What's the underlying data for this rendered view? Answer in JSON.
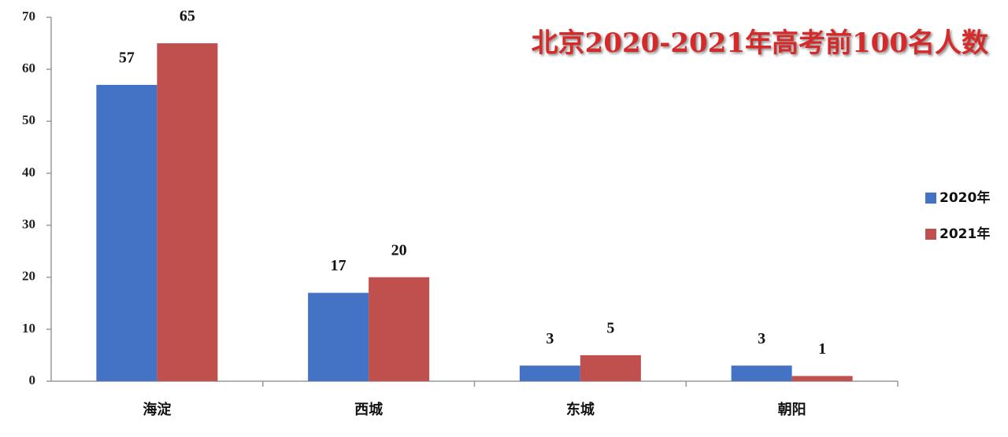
{
  "chart_data": {
    "type": "bar",
    "title": "北京2020-2021年高考前100名人数",
    "categories": [
      "海淀",
      "西城",
      "东城",
      "朝阳"
    ],
    "series": [
      {
        "name": "2020年",
        "color": "#4472c4",
        "values": [
          57,
          17,
          3,
          3
        ]
      },
      {
        "name": "2021年",
        "color": "#c0504d",
        "values": [
          65,
          20,
          5,
          1
        ]
      }
    ],
    "ylim": [
      0,
      70
    ],
    "yticks": [
      0,
      10,
      20,
      30,
      40,
      50,
      60,
      70
    ],
    "grid": false,
    "legend": "right"
  }
}
